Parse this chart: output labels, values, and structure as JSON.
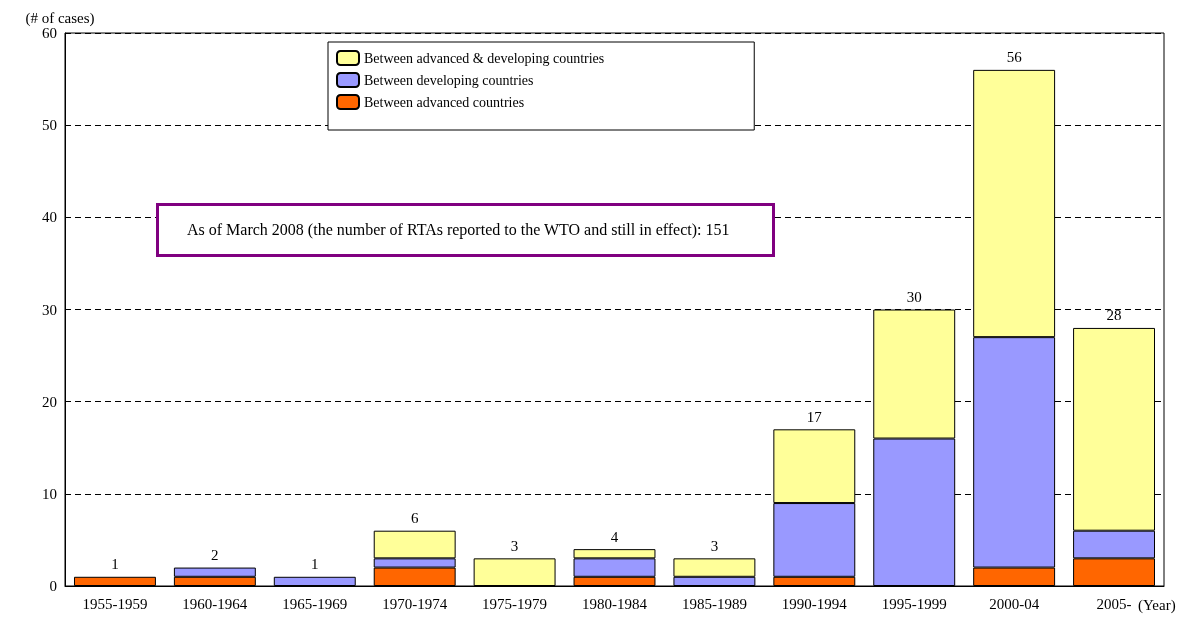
{
  "chart_data": {
    "type": "bar",
    "stacked": true,
    "ylabel": "(# of cases)",
    "xlabel": "(Year)",
    "categories": [
      "1955-1959",
      "1960-1964",
      "1965-1969",
      "1970-1974",
      "1975-1979",
      "1980-1984",
      "1985-1989",
      "1990-1994",
      "1995-1999",
      "2000-04",
      "2005-"
    ],
    "series": [
      {
        "name": "Between advanced countries",
        "color": "#ff6600",
        "values": [
          1,
          1,
          0,
          2,
          0,
          1,
          0,
          1,
          0,
          2,
          3
        ]
      },
      {
        "name": "Between developing countries",
        "color": "#9999ff",
        "values": [
          0,
          1,
          1,
          1,
          0,
          2,
          1,
          8,
          16,
          25,
          3
        ]
      },
      {
        "name": "Between advanced & developing countries",
        "color": "#ffff99",
        "values": [
          0,
          0,
          0,
          3,
          3,
          1,
          2,
          8,
          14,
          29,
          22
        ]
      }
    ],
    "totals": [
      "1",
      "2",
      "1",
      "6",
      "3",
      "4",
      "3",
      "17",
      "30",
      "56",
      "28"
    ],
    "ylim": [
      0,
      60
    ],
    "yticks": [
      0,
      10,
      20,
      30,
      40,
      50,
      60
    ],
    "grid": "y",
    "legend": "top",
    "annotations": [
      "As of March 2008 (the number of RTAs reported to the WTO and still in effect): 151"
    ]
  }
}
